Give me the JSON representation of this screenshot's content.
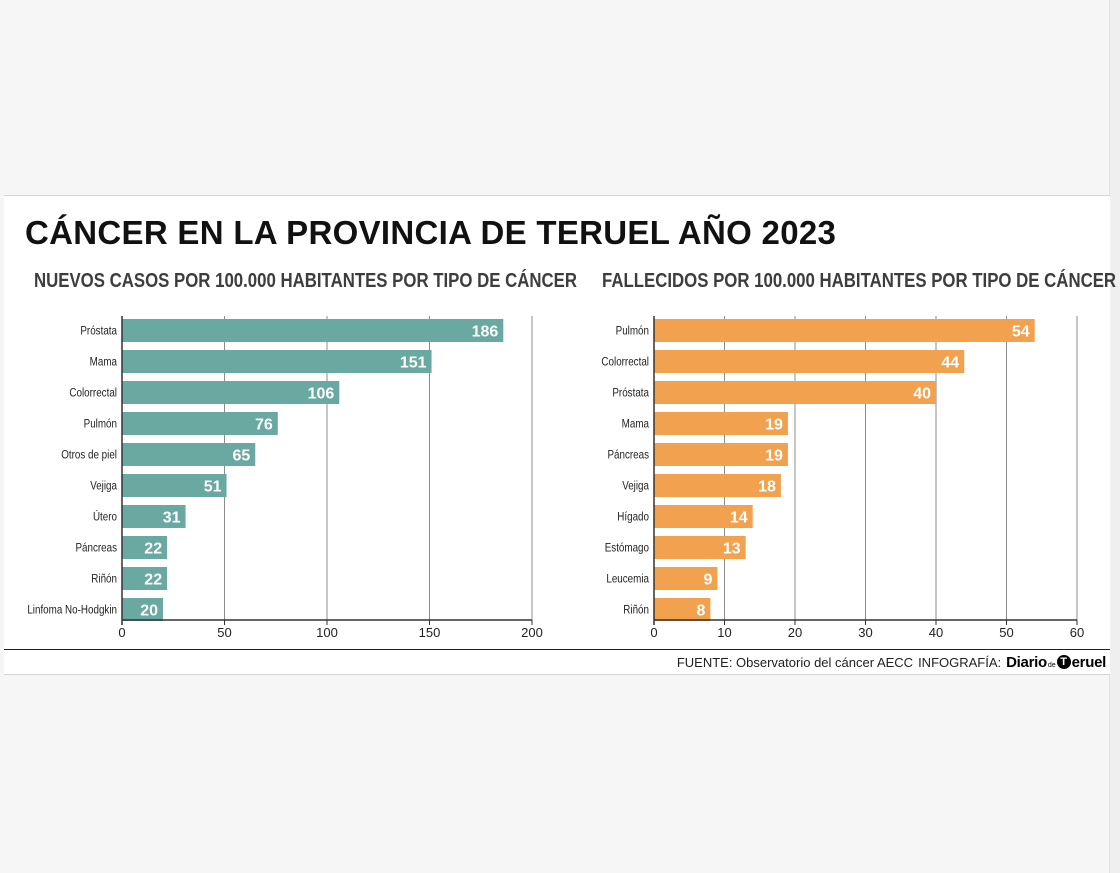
{
  "title": "CÁNCER EN LA PROVINCIA DE TERUEL AÑO 2023",
  "footer": {
    "source": "FUENTE: Observatorio del cáncer AECC",
    "credit": "INFOGRAFÍA:",
    "logo_word1": "Diario",
    "logo_small": "de",
    "logo_initial": "T",
    "logo_word2": "eruel"
  },
  "colors": {
    "teal": "#6aa9a2",
    "orange": "#f2a24f",
    "gridline": "#8c8c8c",
    "axis": "#333333"
  },
  "chart_data": [
    {
      "type": "bar",
      "orientation": "horizontal",
      "title": "NUEVOS CASOS POR 100.000 HABITANTES POR TIPO DE CÁNCER",
      "categories": [
        "Próstata",
        "Mama",
        "Colorrectal",
        "Pulmón",
        "Otros de piel",
        "Vejiga",
        "Útero",
        "Páncreas",
        "Riñón",
        "Linfoma No-Hodgkin"
      ],
      "values": [
        186,
        151,
        106,
        76,
        65,
        51,
        31,
        22,
        22,
        20
      ],
      "xlim": [
        0,
        200
      ],
      "xticks": [
        0,
        50,
        100,
        150,
        200
      ],
      "grid": true,
      "color": "#6aa9a2"
    },
    {
      "type": "bar",
      "orientation": "horizontal",
      "title": "FALLECIDOS POR 100.000 HABITANTES POR TIPO DE CÁNCER",
      "categories": [
        "Pulmón",
        "Colorrectal",
        "Próstata",
        "Mama",
        "Páncreas",
        "Vejiga",
        "Hígado",
        "Estómago",
        "Leucemia",
        "Riñón"
      ],
      "values": [
        54,
        44,
        40,
        19,
        19,
        18,
        14,
        13,
        9,
        8
      ],
      "xlim": [
        0,
        60
      ],
      "xticks": [
        0,
        10,
        20,
        30,
        40,
        50,
        60
      ],
      "grid": true,
      "color": "#f2a24f"
    }
  ]
}
